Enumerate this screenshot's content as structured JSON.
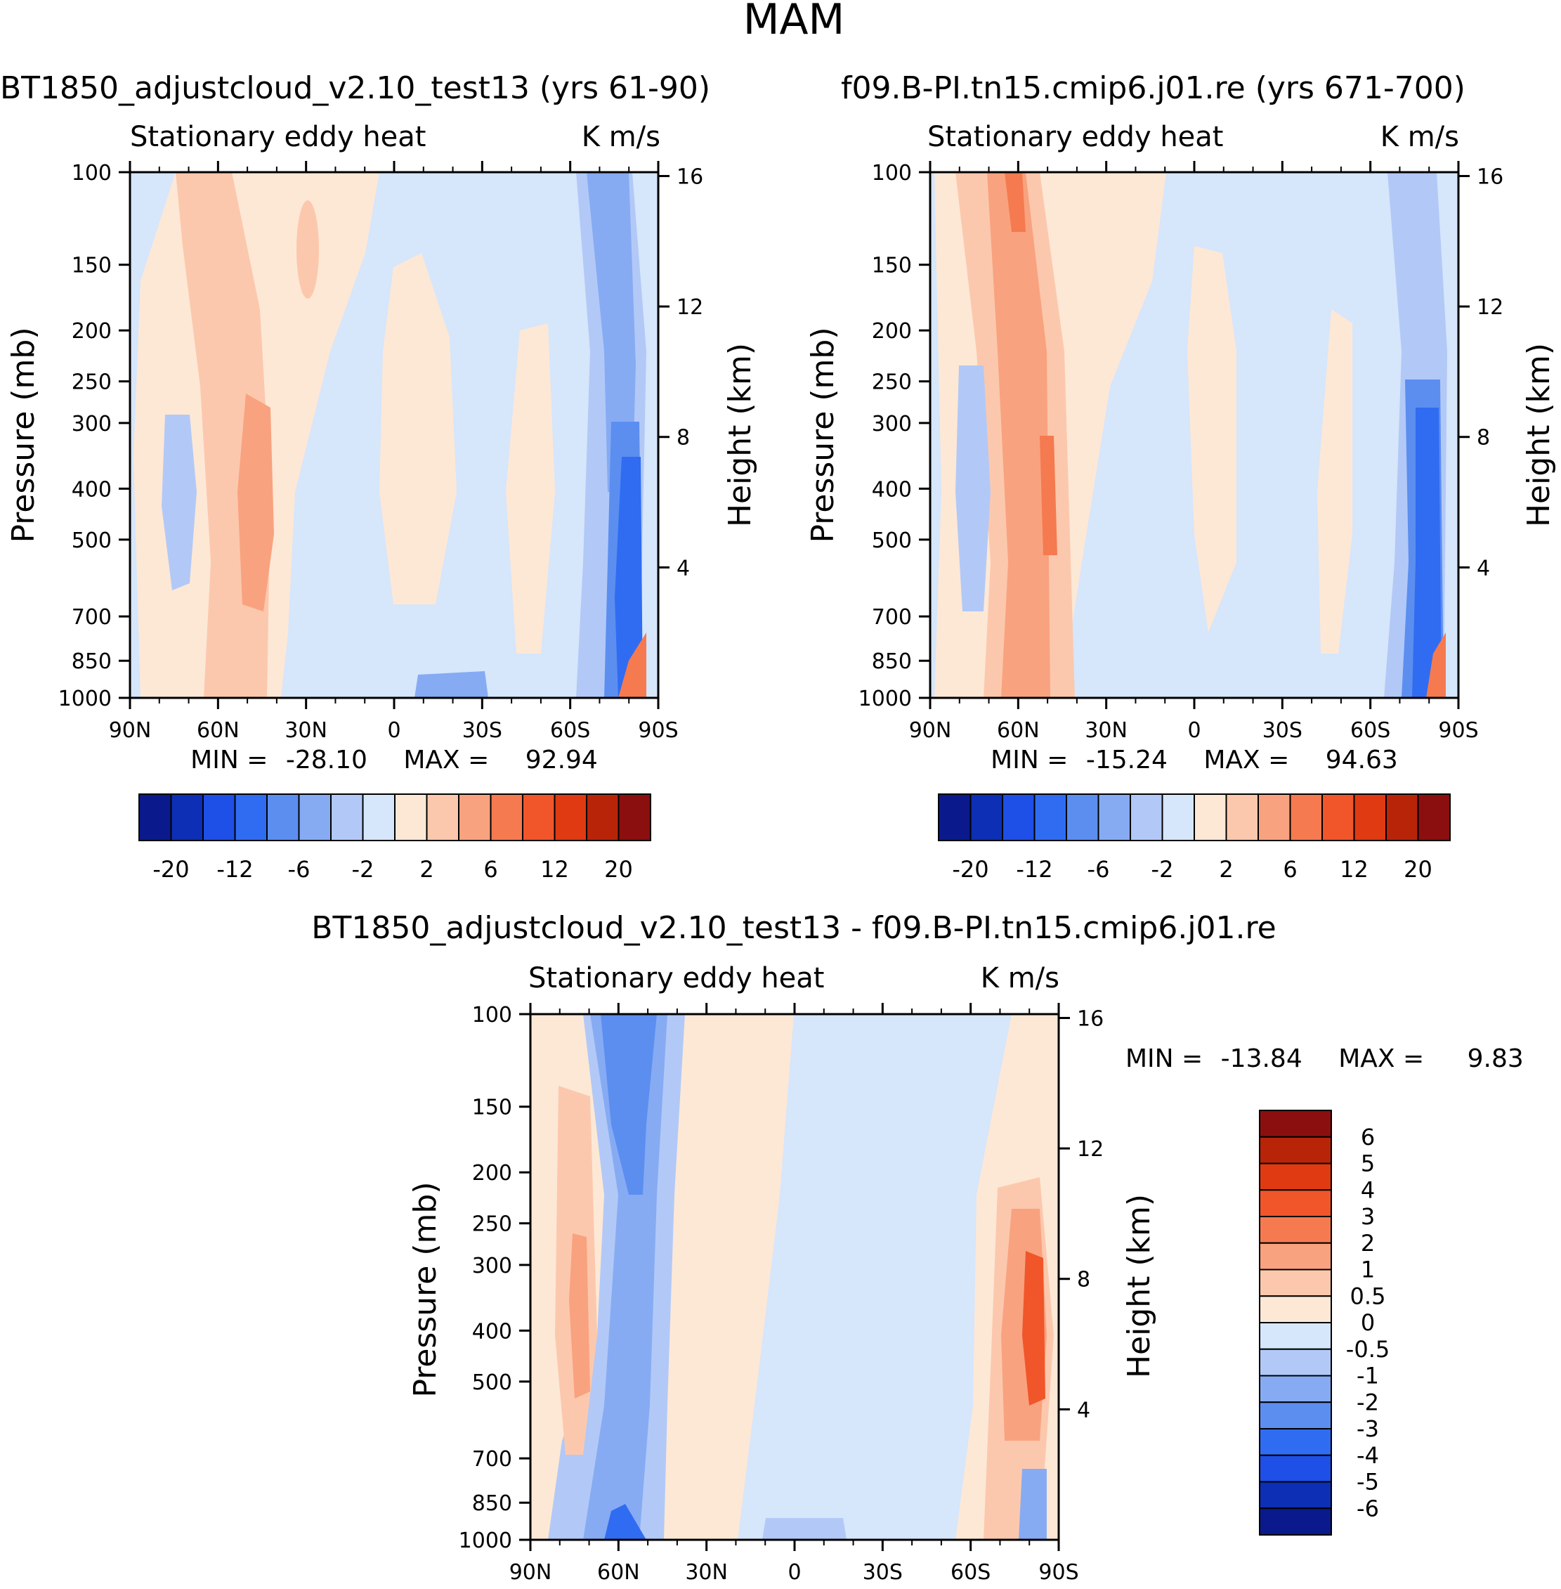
{
  "main_title": "MAM",
  "chart_data": [
    {
      "type": "contour",
      "id": "left",
      "case_title": "BT1850_adjustcloud_v2.10_test13 (yrs 61-90)",
      "title_left": "Stationary eddy heat",
      "title_right": "K m/s",
      "ylabel": "Pressure (mb)",
      "ylabel_right": "Height (km)",
      "x_ticks": [
        "90N",
        "60N",
        "30N",
        "0",
        "30S",
        "60S",
        "90S"
      ],
      "y_ticks": [
        "100",
        "150",
        "200",
        "250",
        "300",
        "400",
        "500",
        "700",
        "850",
        "1000"
      ],
      "y_tick_values": [
        100,
        150,
        200,
        250,
        300,
        400,
        500,
        700,
        850,
        1000
      ],
      "ylim": [
        1000,
        100
      ],
      "height_ticks": [
        "16",
        "12",
        "8",
        "4"
      ],
      "height_tick_values": [
        16,
        12,
        8,
        4
      ],
      "stats": {
        "min_label": "MIN =",
        "min": "-28.10",
        "max_label": "MAX =",
        "max": "92.94"
      },
      "colorbar": {
        "orientation": "horizontal",
        "labels": [
          "-20",
          "-12",
          "-6",
          "-2",
          "2",
          "6",
          "12",
          "20"
        ]
      }
    },
    {
      "type": "contour",
      "id": "right",
      "case_title": "f09.B-PI.tn15.cmip6.j01.re (yrs 671-700)",
      "title_left": "Stationary eddy heat",
      "title_right": "K m/s",
      "ylabel": "Pressure (mb)",
      "ylabel_right": "Height (km)",
      "x_ticks": [
        "90N",
        "60N",
        "30N",
        "0",
        "30S",
        "60S",
        "90S"
      ],
      "y_ticks": [
        "100",
        "150",
        "200",
        "250",
        "300",
        "400",
        "500",
        "700",
        "850",
        "1000"
      ],
      "y_tick_values": [
        100,
        150,
        200,
        250,
        300,
        400,
        500,
        700,
        850,
        1000
      ],
      "ylim": [
        1000,
        100
      ],
      "height_ticks": [
        "16",
        "12",
        "8",
        "4"
      ],
      "height_tick_values": [
        16,
        12,
        8,
        4
      ],
      "stats": {
        "min_label": "MIN =",
        "min": "-15.24",
        "max_label": "MAX =",
        "max": "94.63"
      },
      "colorbar": {
        "orientation": "horizontal",
        "labels": [
          "-20",
          "-12",
          "-6",
          "-2",
          "2",
          "6",
          "12",
          "20"
        ]
      }
    },
    {
      "type": "contour",
      "id": "diff",
      "case_title": "BT1850_adjustcloud_v2.10_test13 - f09.B-PI.tn15.cmip6.j01.re",
      "title_left": "Stationary eddy heat",
      "title_right": "K m/s",
      "ylabel": "Pressure (mb)",
      "ylabel_right": "Height (km)",
      "x_ticks": [
        "90N",
        "60N",
        "30N",
        "0",
        "30S",
        "60S",
        "90S"
      ],
      "y_ticks": [
        "100",
        "150",
        "200",
        "250",
        "300",
        "400",
        "500",
        "700",
        "850",
        "1000"
      ],
      "y_tick_values": [
        100,
        150,
        200,
        250,
        300,
        400,
        500,
        700,
        850,
        1000
      ],
      "ylim": [
        1000,
        100
      ],
      "height_ticks": [
        "16",
        "12",
        "8",
        "4"
      ],
      "height_tick_values": [
        16,
        12,
        8,
        4
      ],
      "stats": {
        "min_label": "MIN =",
        "min": "-13.84",
        "max_label": "MAX =",
        "max": "9.83"
      },
      "colorbar": {
        "orientation": "vertical",
        "labels": [
          "6",
          "5",
          "4",
          "3",
          "2",
          "1",
          "0.5",
          "0",
          "-0.5",
          "-1",
          "-2",
          "-3",
          "-4",
          "-5",
          "-6"
        ]
      }
    }
  ],
  "palette": [
    "#0a1a8c",
    "#0d2fb5",
    "#1e4fe6",
    "#2f6cf2",
    "#5c8ef0",
    "#86abf3",
    "#b2c9f7",
    "#d6e6fb",
    "#fde8d6",
    "#fcc8ad",
    "#f9a27f",
    "#f57a50",
    "#f0562a",
    "#df3a12",
    "#b82408",
    "#8c0f0f"
  ]
}
